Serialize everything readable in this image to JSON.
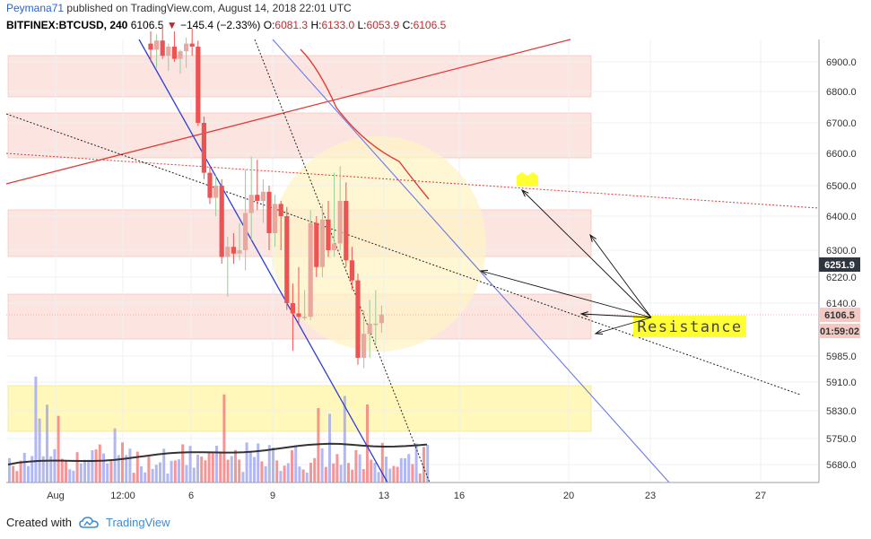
{
  "header": {
    "user": "Peymana71",
    "published": "published on TradingView.com, August 14, 2018 22:01 UTC",
    "symbol": "BITFINEX:BTCUSD, 240",
    "price": "6106.5",
    "arrow": "▼",
    "change": "−145.4 (−2.33%)",
    "o_label": "O:",
    "o_value": "6081.3",
    "h_label": "H:",
    "h_value": "6133.0",
    "l_label": "L:",
    "l_value": "6053.9",
    "c_label": "C:",
    "c_value": "6106.5"
  },
  "footer": {
    "created_with": "Created with",
    "brand": "TradingView"
  },
  "annotation": {
    "resistance_label": "Resistance"
  },
  "colors": {
    "up_candle": "#e8a8a0",
    "down_candle": "#ee5252",
    "resistance_zone": "#fbe0dc",
    "support_zone": "#fff7b3",
    "circle": "#fff3c4",
    "red_line": "#e53935",
    "blue_line": "#2a3fd6",
    "light_blue_line": "#6a79e6",
    "label_bg": "#ffff33"
  },
  "chart_data": {
    "type": "candlestick",
    "title": "",
    "x_tick_labels": [
      "Aug",
      "12:00",
      "6",
      "9",
      "13",
      "16",
      "20",
      "23",
      "27"
    ],
    "y_tick_labels": [
      "6900.0",
      "6800.0",
      "6700.0",
      "6600.0",
      "6500.0",
      "6400.0",
      "6300.0",
      "6220.0",
      "6140.0",
      "5985.0",
      "5910.0",
      "5830.0",
      "5750.0",
      "5680.0"
    ],
    "price_axis_labels": {
      "last_high": "6251.9",
      "current": "6106.5",
      "countdown": "01:59:02"
    },
    "candles": [
      {
        "o": 6960,
        "h": 7000,
        "l": 6900,
        "c": 6940
      },
      {
        "o": 6940,
        "h": 6990,
        "l": 6880,
        "c": 6970
      },
      {
        "o": 6970,
        "h": 7020,
        "l": 6910,
        "c": 6920
      },
      {
        "o": 6920,
        "h": 6960,
        "l": 6870,
        "c": 6950
      },
      {
        "o": 6950,
        "h": 7000,
        "l": 6900,
        "c": 6910
      },
      {
        "o": 6910,
        "h": 6940,
        "l": 6860,
        "c": 6935
      },
      {
        "o": 6935,
        "h": 6980,
        "l": 6880,
        "c": 6960
      },
      {
        "o": 6960,
        "h": 7010,
        "l": 6920,
        "c": 6950
      },
      {
        "o": 6950,
        "h": 6970,
        "l": 6690,
        "c": 6700
      },
      {
        "o": 6700,
        "h": 6720,
        "l": 6520,
        "c": 6540
      },
      {
        "o": 6540,
        "h": 6560,
        "l": 6440,
        "c": 6460
      },
      {
        "o": 6460,
        "h": 6530,
        "l": 6400,
        "c": 6500
      },
      {
        "o": 6500,
        "h": 6520,
        "l": 6260,
        "c": 6280
      },
      {
        "o": 6280,
        "h": 6340,
        "l": 6160,
        "c": 6310
      },
      {
        "o": 6310,
        "h": 6350,
        "l": 6260,
        "c": 6290
      },
      {
        "o": 6290,
        "h": 6380,
        "l": 6270,
        "c": 6300
      },
      {
        "o": 6300,
        "h": 6550,
        "l": 6240,
        "c": 6410
      },
      {
        "o": 6410,
        "h": 6590,
        "l": 6330,
        "c": 6470
      },
      {
        "o": 6470,
        "h": 6580,
        "l": 6420,
        "c": 6450
      },
      {
        "o": 6450,
        "h": 6520,
        "l": 6380,
        "c": 6480
      },
      {
        "o": 6480,
        "h": 6500,
        "l": 6300,
        "c": 6350
      },
      {
        "o": 6350,
        "h": 6470,
        "l": 6310,
        "c": 6440
      },
      {
        "o": 6440,
        "h": 6450,
        "l": 6300,
        "c": 6400
      },
      {
        "o": 6400,
        "h": 6430,
        "l": 6120,
        "c": 6140
      },
      {
        "o": 6140,
        "h": 6200,
        "l": 6000,
        "c": 6110
      },
      {
        "o": 6110,
        "h": 6250,
        "l": 6080,
        "c": 6100
      },
      {
        "o": 6100,
        "h": 6180,
        "l": 6090,
        "c": 6100
      },
      {
        "o": 6100,
        "h": 6420,
        "l": 6090,
        "c": 6380
      },
      {
        "o": 6380,
        "h": 6400,
        "l": 6220,
        "c": 6250
      },
      {
        "o": 6250,
        "h": 6440,
        "l": 6220,
        "c": 6390
      },
      {
        "o": 6390,
        "h": 6450,
        "l": 6280,
        "c": 6300
      },
      {
        "o": 6300,
        "h": 6540,
        "l": 6280,
        "c": 6320
      },
      {
        "o": 6320,
        "h": 6560,
        "l": 6300,
        "c": 6450
      },
      {
        "o": 6450,
        "h": 6510,
        "l": 6250,
        "c": 6270
      },
      {
        "o": 6270,
        "h": 6310,
        "l": 6180,
        "c": 6210
      },
      {
        "o": 6210,
        "h": 6230,
        "l": 5960,
        "c": 5980
      },
      {
        "o": 5980,
        "h": 6120,
        "l": 5950,
        "c": 6050
      },
      {
        "o": 6050,
        "h": 6150,
        "l": 5980,
        "c": 6080
      },
      {
        "o": 6080,
        "h": 6180,
        "l": 6020,
        "c": 6080
      },
      {
        "o": 6081.3,
        "h": 6133.0,
        "l": 6053.9,
        "c": 6106.5
      }
    ]
  }
}
